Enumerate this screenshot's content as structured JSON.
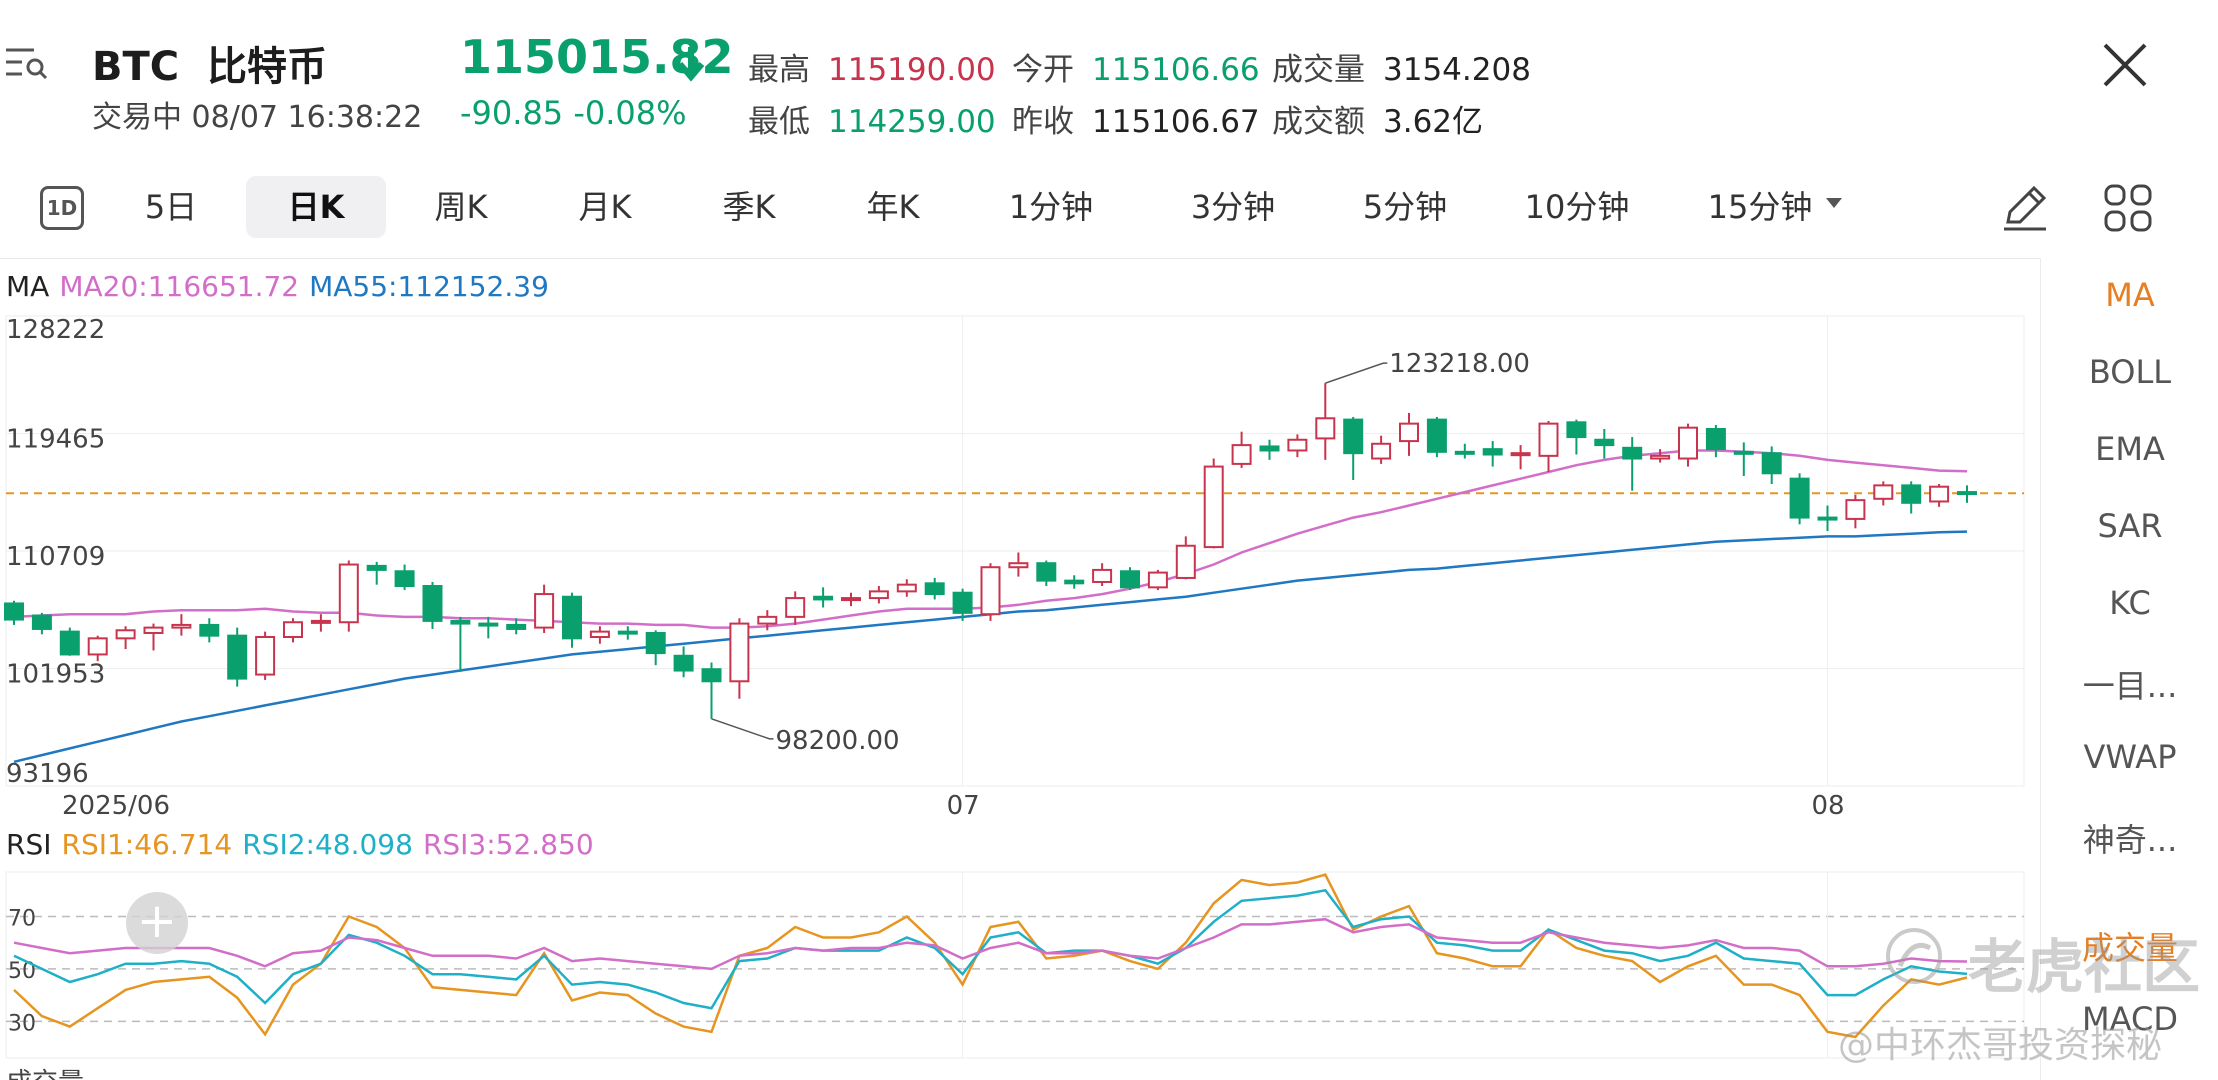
{
  "header": {
    "symbol": "BTC",
    "name": "比特币",
    "status": "交易中",
    "datetime": "08/07 16:38:22",
    "price": "115015.82",
    "change": "-90.85",
    "change_pct": "-0.08%",
    "high_label": "最高",
    "high": "115190.00",
    "low_label": "最低",
    "low": "114259.00",
    "open_label": "今开",
    "open": "115106.66",
    "prev_close_label": "昨收",
    "prev_close": "115106.67",
    "volume_label": "成交量",
    "volume": "3154.208",
    "amount_label": "成交额",
    "amount": "3.62亿"
  },
  "tabs": {
    "one_d": "1D",
    "items": [
      "5日",
      "日K",
      "周K",
      "月K",
      "季K",
      "年K",
      "1分钟",
      "3分钟",
      "5分钟",
      "10分钟",
      "15分钟"
    ],
    "active": "日K"
  },
  "ma_legend": {
    "label": "MA",
    "ma20": "MA20:116651.72",
    "ma55": "MA55:112152.39"
  },
  "rsi_legend": {
    "label": "RSI",
    "rsi1": "RSI1:46.714",
    "rsi2": "RSI2:48.098",
    "rsi3": "RSI3:52.850"
  },
  "sidebar": {
    "items": [
      "MA",
      "BOLL",
      "EMA",
      "SAR",
      "KC",
      "一目...",
      "VWAP",
      "神奇...",
      "成交量",
      "MACD"
    ],
    "active": "MA"
  },
  "colors": {
    "up": "#c8344d",
    "down": "#0aa06e",
    "ma20": "#d36ec8",
    "ma55": "#1f78c1",
    "rsi1": "#e69520",
    "rsi2": "#1fb0c8",
    "rsi3": "#d36ec8",
    "last_price_line": "#e69520",
    "accent": "#e67e22"
  },
  "watermark": {
    "brand": "老虎社区",
    "author": "@中环杰哥投资探秘"
  },
  "partial_label": "成交量",
  "chart_data": [
    {
      "type": "candlestick",
      "y_ticks": [
        "128222",
        "119465",
        "110709",
        "101953",
        "93196"
      ],
      "ylim": [
        93196,
        128222
      ],
      "x_labels": [
        {
          "label": "2025/06",
          "index": 2
        },
        {
          "label": "07",
          "index": 34
        },
        {
          "label": "08",
          "index": 65
        }
      ],
      "last_price": 115015.82,
      "annotations": [
        {
          "text": "123218.00",
          "index": 47,
          "value": 123218
        },
        {
          "text": "98200.00",
          "index": 25,
          "value": 98200
        }
      ],
      "candles": [
        [
          0,
          106800,
          105600,
          107000,
          105200
        ],
        [
          1,
          105900,
          104900,
          106100,
          104500
        ],
        [
          2,
          104700,
          103000,
          105000,
          102900
        ],
        [
          3,
          103000,
          104200,
          104400,
          102500
        ],
        [
          4,
          104200,
          104800,
          105100,
          103400
        ],
        [
          5,
          104600,
          105000,
          105300,
          103300
        ],
        [
          6,
          105000,
          105200,
          106000,
          104400
        ],
        [
          7,
          105200,
          104400,
          105700,
          103900
        ],
        [
          8,
          104400,
          101200,
          105000,
          100600
        ],
        [
          9,
          101500,
          104300,
          104700,
          101100
        ],
        [
          10,
          104300,
          105400,
          105700,
          103900
        ],
        [
          11,
          105400,
          105500,
          106000,
          104700
        ],
        [
          12,
          105400,
          109700,
          110000,
          104700
        ],
        [
          13,
          109600,
          109300,
          109900,
          108200
        ],
        [
          14,
          109200,
          108100,
          109700,
          107800
        ],
        [
          15,
          108100,
          105500,
          108400,
          104900
        ],
        [
          16,
          105500,
          105300,
          105800,
          101700
        ],
        [
          17,
          105300,
          105200,
          105800,
          104200
        ],
        [
          18,
          105200,
          104900,
          105700,
          104500
        ],
        [
          19,
          105000,
          107500,
          108200,
          104600
        ],
        [
          20,
          107300,
          104200,
          107600,
          103500
        ],
        [
          21,
          104300,
          104700,
          105100,
          103800
        ],
        [
          22,
          104700,
          104600,
          105100,
          104100
        ],
        [
          23,
          104600,
          103100,
          104800,
          102200
        ],
        [
          24,
          102900,
          101800,
          103600,
          101300
        ],
        [
          25,
          101900,
          101000,
          102400,
          98200
        ],
        [
          26,
          101000,
          105300,
          105700,
          99700
        ],
        [
          27,
          105300,
          105800,
          106300,
          104800
        ],
        [
          28,
          105800,
          107200,
          107700,
          105200
        ],
        [
          29,
          107300,
          107100,
          108000,
          106500
        ],
        [
          30,
          107100,
          107200,
          107600,
          106600
        ],
        [
          31,
          107200,
          107700,
          108100,
          106800
        ],
        [
          32,
          107700,
          108200,
          108600,
          107300
        ],
        [
          33,
          108300,
          107500,
          108700,
          107100
        ],
        [
          34,
          107600,
          106100,
          107900,
          105500
        ],
        [
          35,
          106000,
          109500,
          109800,
          105500
        ],
        [
          36,
          109500,
          109800,
          110600,
          108800
        ],
        [
          37,
          109800,
          108500,
          110000,
          108100
        ],
        [
          38,
          108500,
          108300,
          108900,
          107900
        ],
        [
          39,
          108400,
          109300,
          109800,
          108100
        ],
        [
          40,
          109200,
          108000,
          109500,
          107800
        ],
        [
          41,
          108000,
          109100,
          109300,
          107800
        ],
        [
          42,
          108700,
          111100,
          111800,
          108600
        ],
        [
          43,
          111000,
          117000,
          117600,
          110900
        ],
        [
          44,
          117200,
          118600,
          119600,
          116900
        ],
        [
          45,
          118500,
          118200,
          119000,
          117500
        ],
        [
          46,
          118200,
          119000,
          119400,
          117700
        ],
        [
          47,
          119100,
          120600,
          123218,
          117500
        ],
        [
          48,
          120500,
          118000,
          120700,
          116000
        ],
        [
          49,
          117600,
          118700,
          119300,
          117200
        ],
        [
          50,
          118900,
          120200,
          121000,
          117800
        ],
        [
          51,
          120500,
          118100,
          120700,
          117700
        ],
        [
          52,
          118100,
          118000,
          118700,
          117600
        ],
        [
          53,
          118300,
          117900,
          118900,
          117000
        ],
        [
          54,
          117900,
          118000,
          118600,
          116800
        ],
        [
          55,
          117800,
          120200,
          120400,
          116600
        ],
        [
          56,
          120300,
          119200,
          120500,
          117900
        ],
        [
          57,
          119000,
          118600,
          119800,
          117600
        ],
        [
          58,
          118400,
          117600,
          119200,
          115200
        ],
        [
          59,
          117600,
          117800,
          118300,
          117300
        ],
        [
          60,
          117600,
          119900,
          120200,
          117000
        ],
        [
          61,
          119800,
          118300,
          120100,
          117700
        ],
        [
          62,
          118100,
          118000,
          118800,
          116300
        ],
        [
          63,
          118000,
          116500,
          118500,
          115700
        ],
        [
          64,
          116100,
          113200,
          116500,
          112700
        ],
        [
          65,
          113200,
          113100,
          114100,
          112200
        ],
        [
          66,
          113100,
          114500,
          114900,
          112400
        ],
        [
          67,
          114600,
          115600,
          115900,
          114100
        ],
        [
          68,
          115600,
          114300,
          115900,
          113500
        ],
        [
          69,
          114400,
          115500,
          115700,
          114000
        ],
        [
          70,
          115100,
          115000,
          115600,
          114300
        ]
      ],
      "series": [
        {
          "name": "MA20",
          "values": [
            105800,
            105900,
            106000,
            106000,
            106000,
            106200,
            106300,
            106300,
            106300,
            106400,
            106200,
            106100,
            106100,
            105900,
            105800,
            105800,
            105700,
            105700,
            105600,
            105500,
            105400,
            105300,
            105300,
            105200,
            105200,
            105000,
            105000,
            105100,
            105300,
            105600,
            105900,
            106200,
            106400,
            106400,
            106400,
            106500,
            106700,
            107000,
            107200,
            107500,
            107900,
            108400,
            109000,
            109700,
            110600,
            111300,
            112000,
            112600,
            113200,
            113600,
            114100,
            114600,
            115100,
            115600,
            116100,
            116600,
            117100,
            117500,
            117800,
            118000,
            118200,
            118200,
            118100,
            118000,
            117800,
            117500,
            117300,
            117100,
            116900,
            116700,
            116651.72
          ]
        },
        {
          "name": "MA55",
          "values": [
            95000,
            95500,
            96000,
            96500,
            97000,
            97500,
            98000,
            98400,
            98800,
            99200,
            99600,
            100000,
            100400,
            100800,
            101200,
            101500,
            101800,
            102100,
            102400,
            102700,
            103000,
            103200,
            103400,
            103600,
            103800,
            104000,
            104200,
            104400,
            104600,
            104800,
            105000,
            105200,
            105400,
            105600,
            105800,
            106000,
            106200,
            106300,
            106500,
            106700,
            106900,
            107100,
            107300,
            107600,
            107900,
            108200,
            108500,
            108700,
            108900,
            109100,
            109300,
            109400,
            109600,
            109800,
            110000,
            110200,
            110400,
            110600,
            110800,
            111000,
            111200,
            111400,
            111500,
            111600,
            111700,
            111800,
            111800,
            111900,
            112000,
            112100,
            112152.39
          ]
        }
      ]
    },
    {
      "type": "line",
      "title": "RSI",
      "y_ticks": [
        "70",
        "50",
        "30"
      ],
      "ylim": [
        16,
        87
      ],
      "series": [
        {
          "name": "RSI1",
          "values": [
            42,
            32,
            28,
            35,
            42,
            45,
            46,
            47,
            39,
            25,
            44,
            52,
            70,
            66,
            58,
            43,
            42,
            41,
            40,
            56,
            38,
            41,
            40,
            33,
            28,
            26,
            55,
            58,
            66,
            62,
            62,
            64,
            70,
            60,
            44,
            66,
            68,
            54,
            55,
            57,
            53,
            50,
            60,
            75,
            84,
            82,
            83,
            86,
            65,
            70,
            74,
            56,
            54,
            51,
            51,
            65,
            58,
            55,
            53,
            45,
            51,
            55,
            44,
            44,
            40,
            26,
            24,
            36,
            46,
            44,
            46.714
          ]
        },
        {
          "name": "RSI2",
          "values": [
            55,
            50,
            45,
            48,
            52,
            52,
            53,
            52,
            47,
            37,
            48,
            52,
            63,
            60,
            55,
            48,
            48,
            47,
            46,
            55,
            44,
            45,
            44,
            41,
            37,
            35,
            53,
            54,
            58,
            57,
            57,
            57,
            62,
            58,
            48,
            62,
            64,
            56,
            57,
            57,
            55,
            52,
            58,
            68,
            76,
            77,
            78,
            80,
            66,
            69,
            70,
            60,
            59,
            57,
            57,
            65,
            61,
            57,
            56,
            53,
            55,
            60,
            54,
            53,
            52,
            40,
            40,
            46,
            51,
            49,
            48.098
          ]
        },
        {
          "name": "RSI3",
          "values": [
            60,
            58,
            56,
            57,
            58,
            58,
            58,
            58,
            55,
            51,
            56,
            57,
            62,
            61,
            58,
            55,
            55,
            55,
            54,
            58,
            53,
            54,
            53,
            52,
            51,
            50,
            55,
            56,
            58,
            57,
            58,
            58,
            60,
            59,
            54,
            58,
            60,
            56,
            56,
            57,
            55,
            54,
            58,
            62,
            67,
            67,
            68,
            69,
            64,
            66,
            67,
            62,
            61,
            60,
            60,
            64,
            62,
            60,
            59,
            58,
            59,
            61,
            58,
            58,
            57,
            51,
            51,
            52,
            54,
            53,
            52.85
          ]
        }
      ]
    }
  ]
}
